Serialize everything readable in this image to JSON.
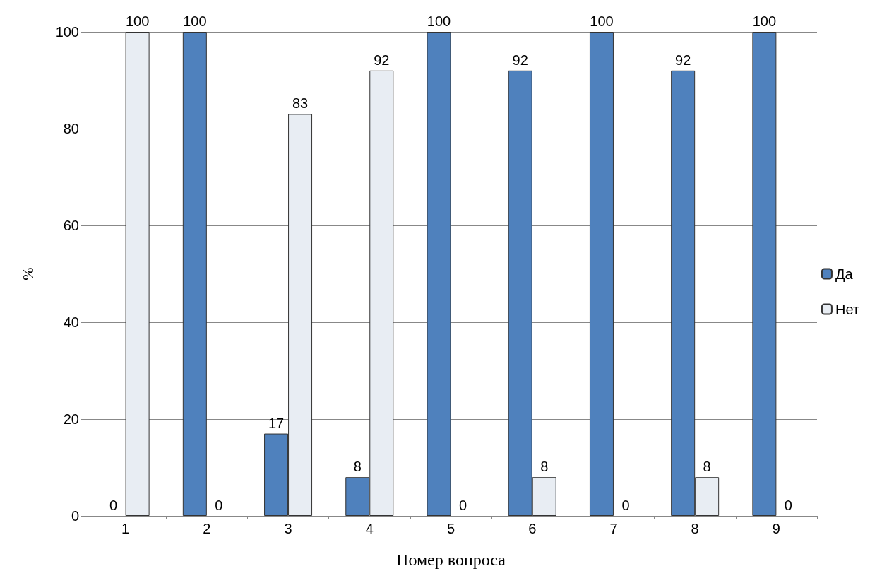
{
  "chart_data": {
    "type": "bar",
    "xlabel": "Номер вопроса",
    "ylabel": "%",
    "categories": [
      "1",
      "2",
      "3",
      "4",
      "5",
      "6",
      "7",
      "8",
      "9"
    ],
    "series": [
      {
        "name": "Да",
        "color": "#4f81bd",
        "values": [
          0,
          100,
          17,
          8,
          100,
          92,
          100,
          92,
          100
        ]
      },
      {
        "name": "Нет",
        "color": "#e8edf3",
        "values": [
          100,
          0,
          83,
          92,
          0,
          8,
          0,
          8,
          0
        ]
      }
    ],
    "ylim": [
      0,
      100
    ],
    "yticks": [
      0,
      20,
      40,
      60,
      80,
      100
    ],
    "grid": "y",
    "legend": "right",
    "data_labels": true
  }
}
